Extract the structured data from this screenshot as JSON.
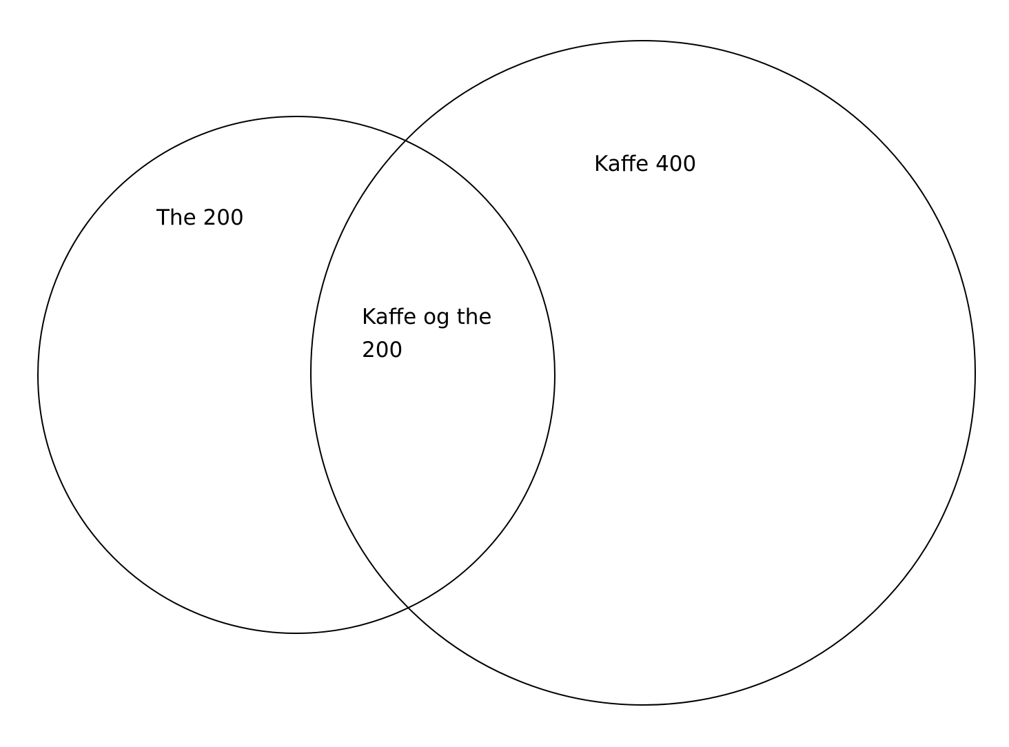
{
  "colors": {
    "stroke": "#000000",
    "background": "#ffffff"
  },
  "diagram": {
    "type": "venn",
    "sets": [
      {
        "label": "The 200"
      },
      {
        "label": "Kaffe 400"
      }
    ],
    "intersection": {
      "label_line1": "Kaffe og the",
      "label_line2": "200"
    }
  }
}
